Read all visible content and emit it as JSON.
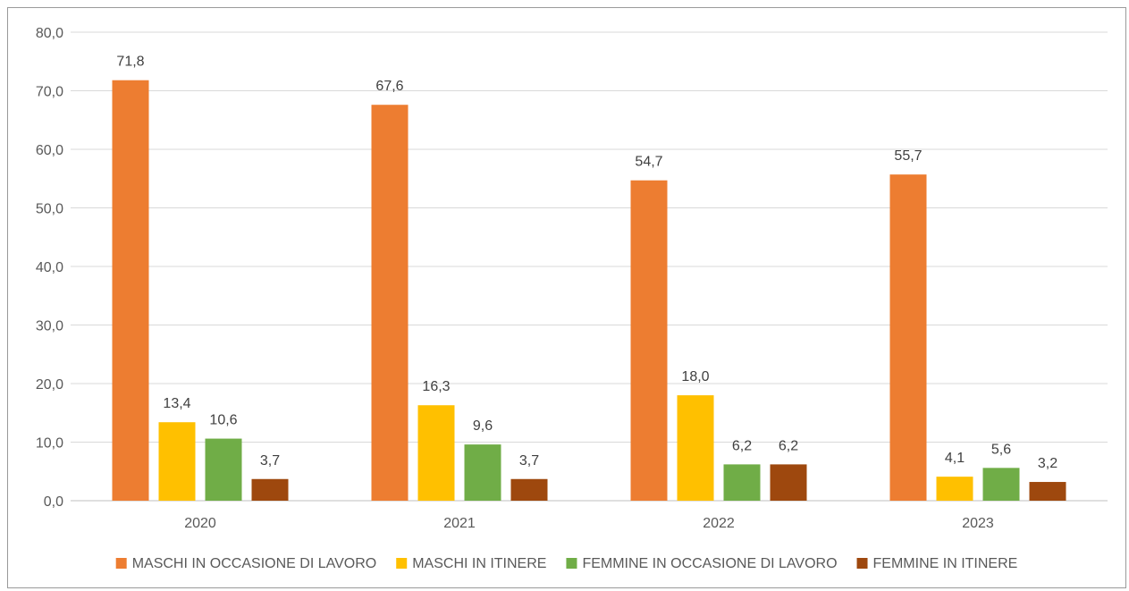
{
  "chart_data": {
    "type": "bar",
    "categories": [
      "2020",
      "2021",
      "2022",
      "2023"
    ],
    "series": [
      {
        "name": "MASCHI IN OCCASIONE DI LAVORO",
        "color": "#ED7D31",
        "values": [
          71.8,
          67.6,
          54.7,
          55.7
        ],
        "labels": [
          "71,8",
          "67,6",
          "54,7",
          "55,7"
        ]
      },
      {
        "name": "MASCHI IN ITINERE",
        "color": "#FFC000",
        "values": [
          13.4,
          16.3,
          18.0,
          4.1
        ],
        "labels": [
          "13,4",
          "16,3",
          "18,0",
          "4,1"
        ]
      },
      {
        "name": "FEMMINE IN OCCASIONE DI LAVORO",
        "color": "#70AD47",
        "values": [
          10.6,
          9.6,
          6.2,
          5.6
        ],
        "labels": [
          "10,6",
          "9,6",
          "6,2",
          "5,6"
        ]
      },
      {
        "name": "FEMMINE IN ITINERE",
        "color": "#9E480E",
        "values": [
          3.7,
          3.7,
          6.2,
          3.2
        ],
        "labels": [
          "3,7",
          "3,7",
          "6,2",
          "3,2"
        ]
      }
    ],
    "ylim": [
      0,
      80
    ],
    "yticks": [
      0,
      10,
      20,
      30,
      40,
      50,
      60,
      70,
      80
    ],
    "ytick_labels": [
      "0,0",
      "10,0",
      "20,0",
      "30,0",
      "40,0",
      "50,0",
      "60,0",
      "70,0",
      "80,0"
    ],
    "grid": true,
    "legend": "bottom",
    "title": "",
    "xlabel": "",
    "ylabel": ""
  }
}
